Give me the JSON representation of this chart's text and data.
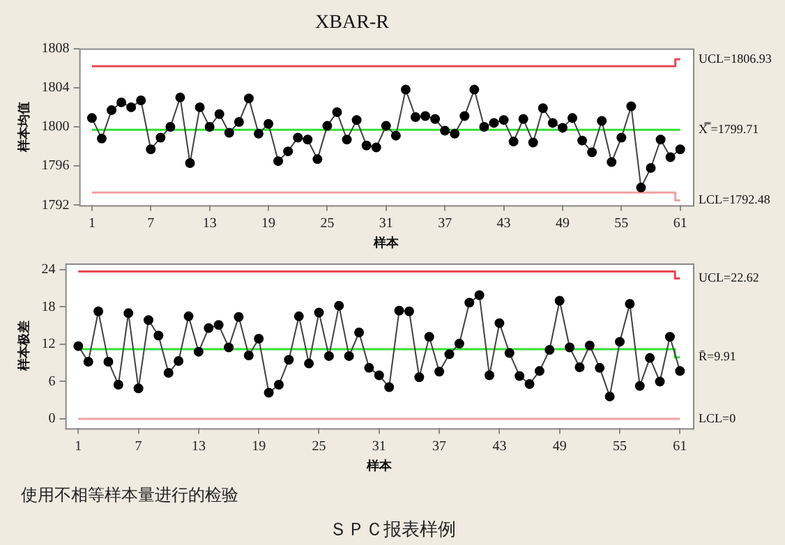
{
  "chart_data": [
    {
      "type": "line",
      "title": "XBAR-R",
      "xlabel": "样本",
      "ylabel": "样本均值",
      "marker": "circle",
      "legend": false,
      "grid": false,
      "x": [
        1,
        2,
        3,
        4,
        5,
        6,
        7,
        8,
        9,
        10,
        11,
        12,
        13,
        14,
        15,
        16,
        17,
        18,
        19,
        20,
        21,
        22,
        23,
        24,
        25,
        26,
        27,
        28,
        29,
        30,
        31,
        32,
        33,
        34,
        35,
        36,
        37,
        38,
        39,
        40,
        41,
        42,
        43,
        44,
        45,
        46,
        47,
        48,
        49,
        50,
        51,
        52,
        53,
        54,
        55,
        56,
        57,
        58,
        59,
        60,
        61
      ],
      "xlim": [
        -0.3,
        62.3
      ],
      "xticks": [
        1,
        7,
        13,
        19,
        25,
        31,
        37,
        43,
        49,
        55,
        61
      ],
      "ylim": [
        1792,
        1808
      ],
      "yticks": [
        1792,
        1796,
        1800,
        1804,
        1808
      ],
      "series": [
        {
          "color": "#000000",
          "values": [
            1800.9,
            1798.8,
            1801.7,
            1802.5,
            1802.0,
            1802.7,
            1797.7,
            1798.9,
            1800.0,
            1803.0,
            1796.3,
            1802.0,
            1800.0,
            1801.3,
            1799.4,
            1800.5,
            1802.9,
            1799.3,
            1800.3,
            1796.5,
            1797.5,
            1798.9,
            1798.7,
            1796.7,
            1800.1,
            1801.5,
            1798.7,
            1800.7,
            1798.1,
            1797.9,
            1800.1,
            1799.1,
            1803.8,
            1801.0,
            1801.1,
            1800.8,
            1799.6,
            1799.3,
            1801.1,
            1803.8,
            1800.0,
            1800.4,
            1800.7,
            1798.5,
            1800.8,
            1798.4,
            1801.9,
            1800.4,
            1799.9,
            1800.9,
            1798.6,
            1797.4,
            1800.6,
            1796.4,
            1798.9,
            1802.1,
            1793.8,
            1795.8,
            1798.7,
            1796.9,
            1797.7
          ]
        },
        {
          "name": "UCL=1806.93",
          "type": "step",
          "marker": "none",
          "color": "#e8484e",
          "values": [
            1806.2,
            1806.2,
            1806.2,
            1806.2,
            1806.2,
            1806.2,
            1806.2,
            1806.2,
            1806.2,
            1806.2,
            1806.2,
            1806.2,
            1806.2,
            1806.2,
            1806.2,
            1806.2,
            1806.2,
            1806.2,
            1806.2,
            1806.2,
            1806.2,
            1806.2,
            1806.2,
            1806.2,
            1806.2,
            1806.2,
            1806.2,
            1806.2,
            1806.2,
            1806.2,
            1806.2,
            1806.2,
            1806.2,
            1806.2,
            1806.2,
            1806.2,
            1806.2,
            1806.2,
            1806.2,
            1806.2,
            1806.2,
            1806.2,
            1806.2,
            1806.2,
            1806.2,
            1806.2,
            1806.2,
            1806.2,
            1806.2,
            1806.2,
            1806.2,
            1806.2,
            1806.2,
            1806.2,
            1806.2,
            1806.2,
            1806.2,
            1806.2,
            1806.2,
            1806.2,
            1806.9
          ]
        },
        {
          "name": "X̿ =1799.71",
          "type": "step",
          "marker": "none",
          "color": "#33e033",
          "values": [
            1799.7,
            1799.7,
            1799.7,
            1799.7,
            1799.7,
            1799.7,
            1799.7,
            1799.7,
            1799.7,
            1799.7,
            1799.7,
            1799.7,
            1799.7,
            1799.7,
            1799.7,
            1799.7,
            1799.7,
            1799.7,
            1799.7,
            1799.7,
            1799.7,
            1799.7,
            1799.7,
            1799.7,
            1799.7,
            1799.7,
            1799.7,
            1799.7,
            1799.7,
            1799.7,
            1799.7,
            1799.7,
            1799.7,
            1799.7,
            1799.7,
            1799.7,
            1799.7,
            1799.7,
            1799.7,
            1799.7,
            1799.7,
            1799.7,
            1799.7,
            1799.7,
            1799.7,
            1799.7,
            1799.7,
            1799.7,
            1799.7,
            1799.7,
            1799.7,
            1799.7,
            1799.7,
            1799.7,
            1799.7,
            1799.7,
            1799.7,
            1799.7,
            1799.7,
            1799.7,
            1799.7
          ]
        },
        {
          "name": "LCL=1792.48",
          "type": "step",
          "marker": "none",
          "color": "#f4a0a4",
          "values": [
            1793.3,
            1793.3,
            1793.3,
            1793.3,
            1793.3,
            1793.3,
            1793.3,
            1793.3,
            1793.3,
            1793.3,
            1793.3,
            1793.3,
            1793.3,
            1793.3,
            1793.3,
            1793.3,
            1793.3,
            1793.3,
            1793.3,
            1793.3,
            1793.3,
            1793.3,
            1793.3,
            1793.3,
            1793.3,
            1793.3,
            1793.3,
            1793.3,
            1793.3,
            1793.3,
            1793.3,
            1793.3,
            1793.3,
            1793.3,
            1793.3,
            1793.3,
            1793.3,
            1793.3,
            1793.3,
            1793.3,
            1793.3,
            1793.3,
            1793.3,
            1793.3,
            1793.3,
            1793.3,
            1793.3,
            1793.3,
            1793.3,
            1793.3,
            1793.3,
            1793.3,
            1793.3,
            1793.3,
            1793.3,
            1793.3,
            1793.3,
            1793.3,
            1793.3,
            1793.3,
            1792.5
          ]
        }
      ]
    },
    {
      "type": "line",
      "xlabel": "样本",
      "ylabel": "样本极差",
      "marker": "circle",
      "legend": false,
      "grid": false,
      "x": [
        1,
        2,
        3,
        4,
        5,
        6,
        7,
        8,
        9,
        10,
        11,
        12,
        13,
        14,
        15,
        16,
        17,
        18,
        19,
        20,
        21,
        22,
        23,
        24,
        25,
        26,
        27,
        28,
        29,
        30,
        31,
        32,
        33,
        34,
        35,
        36,
        37,
        38,
        39,
        40,
        41,
        42,
        43,
        44,
        45,
        46,
        47,
        48,
        49,
        50,
        51,
        52,
        53,
        54,
        55,
        56,
        57,
        58,
        59,
        60,
        61
      ],
      "xlim": [
        -0.3,
        62.3
      ],
      "xticks": [
        1,
        7,
        13,
        19,
        25,
        31,
        37,
        43,
        49,
        55,
        61
      ],
      "ylim": [
        -1.5,
        25
      ],
      "yticks": [
        0,
        6,
        12,
        18,
        24
      ],
      "annotations": [
        "使用不相等样本量进行的检验",
        "ＳＰＣ报表样例"
      ],
      "series": [
        {
          "color": "#000000",
          "values": [
            11.7,
            9.2,
            17.3,
            9.2,
            5.5,
            17.0,
            4.9,
            15.9,
            13.4,
            7.4,
            9.3,
            16.5,
            10.8,
            14.6,
            15.1,
            11.5,
            16.4,
            10.2,
            12.9,
            4.2,
            5.5,
            9.5,
            16.5,
            8.9,
            17.1,
            10.1,
            18.2,
            10.1,
            13.9,
            8.2,
            7.0,
            5.1,
            17.4,
            17.3,
            6.7,
            13.2,
            7.6,
            10.4,
            12.1,
            18.7,
            19.9,
            7.0,
            15.4,
            10.6,
            6.9,
            5.6,
            7.7,
            11.1,
            19.0,
            11.5,
            8.3,
            11.8,
            8.2,
            3.6,
            12.4,
            18.5,
            5.3,
            9.8,
            6.0,
            13.2,
            7.7
          ]
        },
        {
          "name": "UCL=22.62",
          "type": "step",
          "marker": "none",
          "color": "#e8484e",
          "values": [
            23.7,
            23.7,
            23.7,
            23.7,
            23.7,
            23.7,
            23.7,
            23.7,
            23.7,
            23.7,
            23.7,
            23.7,
            23.7,
            23.7,
            23.7,
            23.7,
            23.7,
            23.7,
            23.7,
            23.7,
            23.7,
            23.7,
            23.7,
            23.7,
            23.7,
            23.7,
            23.7,
            23.7,
            23.7,
            23.7,
            23.7,
            23.7,
            23.7,
            23.7,
            23.7,
            23.7,
            23.7,
            23.7,
            23.7,
            23.7,
            23.7,
            23.7,
            23.7,
            23.7,
            23.7,
            23.7,
            23.7,
            23.7,
            23.7,
            23.7,
            23.7,
            23.7,
            23.7,
            23.7,
            23.7,
            23.7,
            23.7,
            23.7,
            23.7,
            23.7,
            22.6
          ]
        },
        {
          "name": "R̄=9.91",
          "type": "step",
          "marker": "none",
          "color": "#33e033",
          "values": [
            11.2,
            11.2,
            11.2,
            11.2,
            11.2,
            11.2,
            11.2,
            11.2,
            11.2,
            11.2,
            11.2,
            11.2,
            11.2,
            11.2,
            11.2,
            11.2,
            11.2,
            11.2,
            11.2,
            11.2,
            11.2,
            11.2,
            11.2,
            11.2,
            11.2,
            11.2,
            11.2,
            11.2,
            11.2,
            11.2,
            11.2,
            11.2,
            11.2,
            11.2,
            11.2,
            11.2,
            11.2,
            11.2,
            11.2,
            11.2,
            11.2,
            11.2,
            11.2,
            11.2,
            11.2,
            11.2,
            11.2,
            11.2,
            11.2,
            11.2,
            11.2,
            11.2,
            11.2,
            11.2,
            11.2,
            11.2,
            11.2,
            11.2,
            11.2,
            11.2,
            9.9
          ]
        },
        {
          "name": "LCL=0",
          "type": "step",
          "marker": "none",
          "color": "#f4a0a4",
          "values": [
            0,
            0,
            0,
            0,
            0,
            0,
            0,
            0,
            0,
            0,
            0,
            0,
            0,
            0,
            0,
            0,
            0,
            0,
            0,
            0,
            0,
            0,
            0,
            0,
            0,
            0,
            0,
            0,
            0,
            0,
            0,
            0,
            0,
            0,
            0,
            0,
            0,
            0,
            0,
            0,
            0,
            0,
            0,
            0,
            0,
            0,
            0,
            0,
            0,
            0,
            0,
            0,
            0,
            0,
            0,
            0,
            0,
            0,
            0,
            0,
            0
          ]
        }
      ]
    }
  ]
}
